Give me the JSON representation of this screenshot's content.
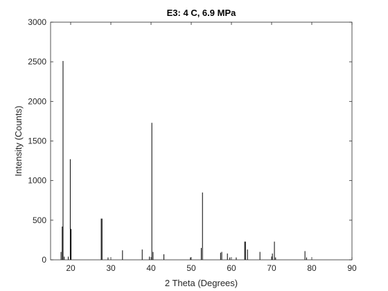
{
  "chart_data": {
    "type": "bar",
    "title": "E3: 4 C, 6.9 MPa",
    "xlabel": "2 Theta (Degrees)",
    "ylabel": "Intensity (Counts)",
    "xlim": [
      15,
      90
    ],
    "ylim": [
      0,
      3000
    ],
    "xticks": [
      20,
      30,
      40,
      50,
      60,
      70,
      80,
      90
    ],
    "yticks": [
      0,
      500,
      1000,
      1500,
      2000,
      2500,
      3000
    ],
    "grid": false,
    "legend": "none",
    "line_color": "#000000",
    "series": [
      {
        "x": [
          17.6,
          17.9,
          18.1,
          18.4,
          19.4,
          19.9,
          20.1,
          27.6,
          27.8,
          29.3,
          32.9,
          37.8,
          39.6,
          40.2,
          40.5,
          43.2,
          49.8,
          52.5,
          52.8,
          57.3,
          57.6,
          59.0,
          59.6,
          61.2,
          63.3,
          63.5,
          64.0,
          67.1,
          70.0,
          70.2,
          70.7,
          71.0,
          78.3,
          78.7
        ],
        "y": [
          100,
          420,
          2510,
          40,
          40,
          1270,
          390,
          520,
          520,
          30,
          120,
          130,
          40,
          1730,
          100,
          70,
          30,
          150,
          850,
          90,
          100,
          80,
          30,
          30,
          230,
          230,
          130,
          100,
          40,
          80,
          230,
          30,
          110,
          30
        ]
      }
    ]
  }
}
